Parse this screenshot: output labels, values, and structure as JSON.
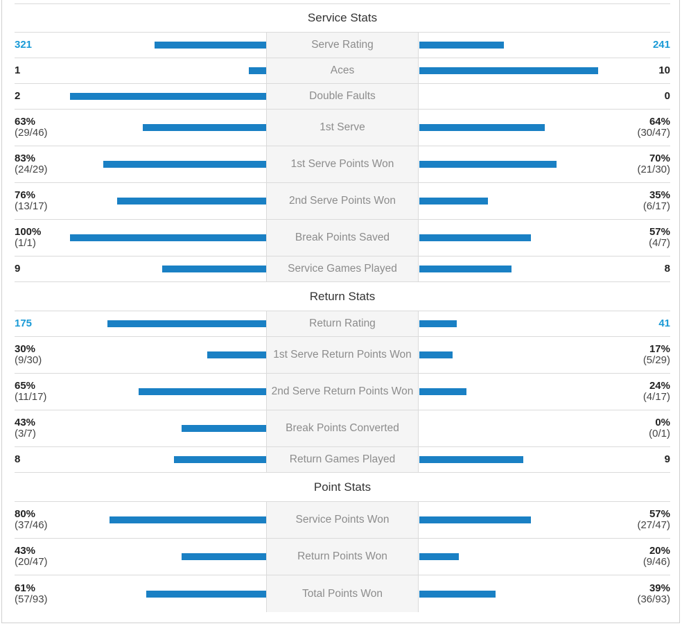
{
  "bar_color": "#1a80c4",
  "rating_color": "#1a9ad6",
  "sections": [
    {
      "title": "Service Stats",
      "rows": [
        {
          "label": "Serve Rating",
          "left": {
            "main": "321",
            "sub": ""
          },
          "right": {
            "main": "241",
            "sub": ""
          },
          "rating": true,
          "left_fraction": 0.57,
          "right_fraction": 0.43
        },
        {
          "label": "Aces",
          "left": {
            "main": "1",
            "sub": ""
          },
          "right": {
            "main": "10",
            "sub": ""
          },
          "left_fraction": 0.09,
          "right_fraction": 0.91
        },
        {
          "label": "Double Faults",
          "left": {
            "main": "2",
            "sub": ""
          },
          "right": {
            "main": "0",
            "sub": ""
          },
          "left_fraction": 1.0,
          "right_fraction": 0.0
        },
        {
          "label": "1st Serve",
          "left": {
            "main": "63%",
            "sub": "(29/46)"
          },
          "right": {
            "main": "64%",
            "sub": "(30/47)"
          },
          "left_fraction": 0.63,
          "right_fraction": 0.64
        },
        {
          "label": "1st Serve Points Won",
          "left": {
            "main": "83%",
            "sub": "(24/29)"
          },
          "right": {
            "main": "70%",
            "sub": "(21/30)"
          },
          "left_fraction": 0.83,
          "right_fraction": 0.7
        },
        {
          "label": "2nd Serve Points Won",
          "left": {
            "main": "76%",
            "sub": "(13/17)"
          },
          "right": {
            "main": "35%",
            "sub": "(6/17)"
          },
          "left_fraction": 0.76,
          "right_fraction": 0.35
        },
        {
          "label": "Break Points Saved",
          "left": {
            "main": "100%",
            "sub": "(1/1)"
          },
          "right": {
            "main": "57%",
            "sub": "(4/7)"
          },
          "left_fraction": 1.0,
          "right_fraction": 0.57
        },
        {
          "label": "Service Games Played",
          "left": {
            "main": "9",
            "sub": ""
          },
          "right": {
            "main": "8",
            "sub": ""
          },
          "left_fraction": 0.53,
          "right_fraction": 0.47
        }
      ]
    },
    {
      "title": "Return Stats",
      "rows": [
        {
          "label": "Return Rating",
          "left": {
            "main": "175",
            "sub": ""
          },
          "right": {
            "main": "41",
            "sub": ""
          },
          "rating": true,
          "left_fraction": 0.81,
          "right_fraction": 0.19
        },
        {
          "label": "1st Serve Return Points Won",
          "left": {
            "main": "30%",
            "sub": "(9/30)"
          },
          "right": {
            "main": "17%",
            "sub": "(5/29)"
          },
          "left_fraction": 0.3,
          "right_fraction": 0.17
        },
        {
          "label": "2nd Serve Return Points Won",
          "left": {
            "main": "65%",
            "sub": "(11/17)"
          },
          "right": {
            "main": "24%",
            "sub": "(4/17)"
          },
          "left_fraction": 0.65,
          "right_fraction": 0.24
        },
        {
          "label": "Break Points Converted",
          "left": {
            "main": "43%",
            "sub": "(3/7)"
          },
          "right": {
            "main": "0%",
            "sub": "(0/1)"
          },
          "left_fraction": 0.43,
          "right_fraction": 0.0
        },
        {
          "label": "Return Games Played",
          "left": {
            "main": "8",
            "sub": ""
          },
          "right": {
            "main": "9",
            "sub": ""
          },
          "left_fraction": 0.47,
          "right_fraction": 0.53
        }
      ]
    },
    {
      "title": "Point Stats",
      "rows": [
        {
          "label": "Service Points Won",
          "left": {
            "main": "80%",
            "sub": "(37/46)"
          },
          "right": {
            "main": "57%",
            "sub": "(27/47)"
          },
          "left_fraction": 0.8,
          "right_fraction": 0.57
        },
        {
          "label": "Return Points Won",
          "left": {
            "main": "43%",
            "sub": "(20/47)"
          },
          "right": {
            "main": "20%",
            "sub": "(9/46)"
          },
          "left_fraction": 0.43,
          "right_fraction": 0.2
        },
        {
          "label": "Total Points Won",
          "left": {
            "main": "61%",
            "sub": "(57/93)"
          },
          "right": {
            "main": "39%",
            "sub": "(36/93)"
          },
          "left_fraction": 0.61,
          "right_fraction": 0.39
        }
      ]
    }
  ]
}
